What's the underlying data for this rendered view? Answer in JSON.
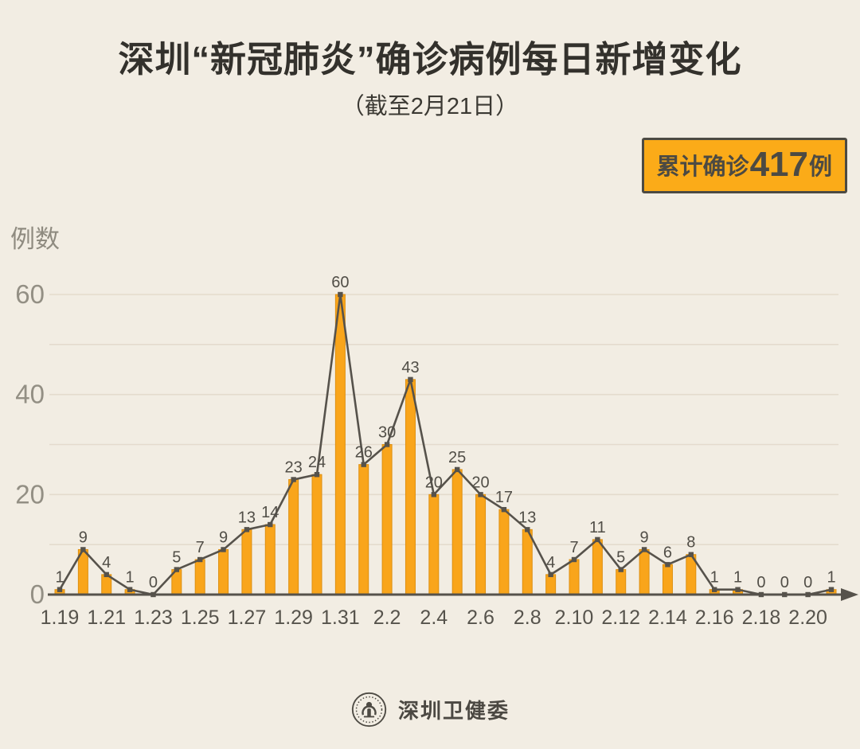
{
  "header": {
    "title": "深圳“新冠肺炎”确诊病例每日新增变化",
    "subtitle": "（截至2月21日）"
  },
  "badge": {
    "prefix": "累计确诊",
    "number": "417",
    "suffix": "例"
  },
  "footer": {
    "org_name": "深圳卫健委",
    "logo": "shenzhen-health-commission-emblem"
  },
  "colors": {
    "background": "#F2EDE3",
    "bar_fill": "#F9A51B",
    "bar_stroke": "#DE8F10",
    "line": "#56524B",
    "grid": "#E4DBCD",
    "badge_bg": "#FBAB18",
    "badge_border": "#4C4A43",
    "title_text": "#33312C",
    "axis_text": "#938F84"
  },
  "chart_data": {
    "type": "bar",
    "overlay": "line",
    "title": "深圳“新冠肺炎”确诊病例每日新增变化",
    "subtitle": "（截至2月21日）",
    "ylabel": "例数",
    "xlabel": "",
    "categories": [
      "1.19",
      "1.20",
      "1.21",
      "1.22",
      "1.23",
      "1.24",
      "1.25",
      "1.26",
      "1.27",
      "1.28",
      "1.29",
      "1.30",
      "1.31",
      "2.1",
      "2.2",
      "2.3",
      "2.4",
      "2.5",
      "2.6",
      "2.7",
      "2.8",
      "2.9",
      "2.10",
      "2.11",
      "2.12",
      "2.13",
      "2.14",
      "2.15",
      "2.16",
      "2.17",
      "2.18",
      "2.19",
      "2.20",
      "2.21"
    ],
    "values": [
      1,
      9,
      4,
      1,
      0,
      5,
      7,
      9,
      13,
      14,
      23,
      24,
      60,
      26,
      30,
      43,
      20,
      25,
      20,
      17,
      13,
      4,
      7,
      11,
      5,
      9,
      6,
      8,
      1,
      1,
      0,
      0,
      0,
      1
    ],
    "x_tick_labels": [
      "1.19",
      "1.21",
      "1.23",
      "1.25",
      "1.27",
      "1.29",
      "1.31",
      "2.2",
      "2.4",
      "2.6",
      "2.8",
      "2.10",
      "2.12",
      "2.14",
      "2.16",
      "2.18",
      "2.20"
    ],
    "yticks": [
      0,
      20,
      40,
      60
    ],
    "ylim": [
      0,
      60
    ],
    "grid_step": 10,
    "grid": "horizontal",
    "legend": "none",
    "point_value_labels": true,
    "total": 417
  }
}
